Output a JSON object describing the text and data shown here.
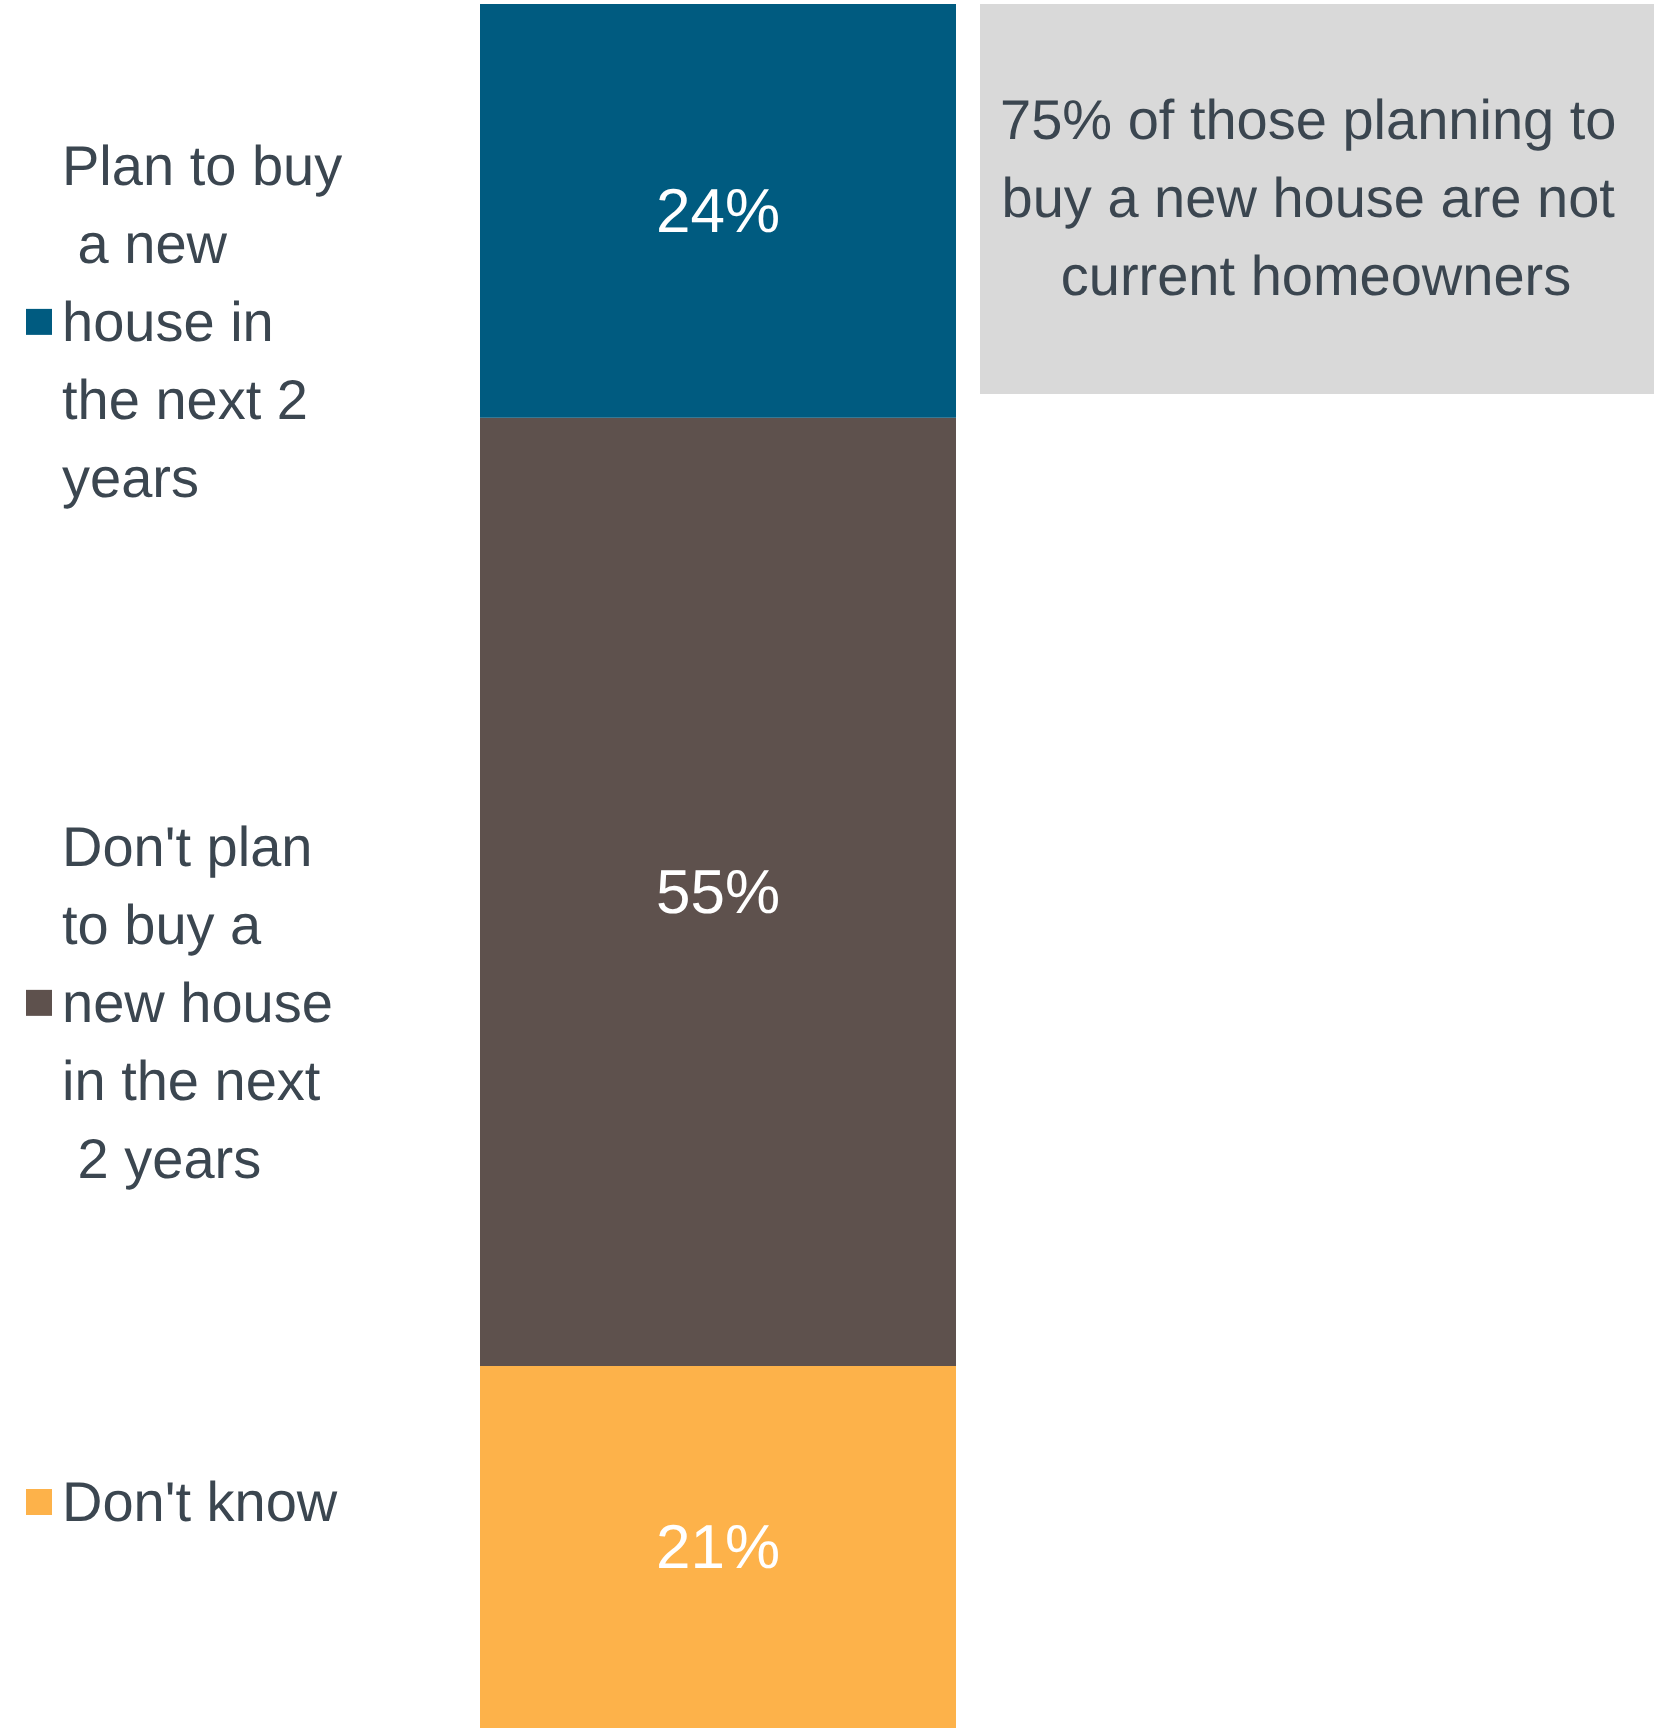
{
  "chart_data": {
    "type": "bar",
    "stacked": true,
    "categories": [
      null
    ],
    "series": [
      {
        "name": "Don't know",
        "color": "#fdb24a",
        "values": [
          21
        ],
        "value_labels": [
          "21%"
        ]
      },
      {
        "name": "Don't plan to buy a new house in the next 2 years",
        "color": "#5e514d",
        "values": [
          55
        ],
        "value_labels": [
          "55%"
        ]
      },
      {
        "name": "Plan to buy a new house in the next 2 years",
        "color": "#005b80",
        "values": [
          24
        ],
        "value_labels": [
          "24%"
        ]
      }
    ],
    "legend": "left",
    "tick_labels": false,
    "annotations": [
      "75% of those planning to buy a new house are not current homeowners"
    ]
  }
}
